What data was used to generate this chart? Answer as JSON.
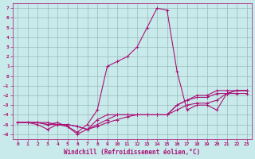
{
  "xlabel": "Windchill (Refroidissement éolien,°C)",
  "ylabel": "",
  "bg_color": "#c8eaea",
  "grid_color": "#9ababa",
  "line_color": "#aa1177",
  "xlim": [
    -0.5,
    23.5
  ],
  "ylim": [
    -6.5,
    7.5
  ],
  "xticks": [
    0,
    1,
    2,
    3,
    4,
    5,
    6,
    7,
    8,
    9,
    10,
    11,
    12,
    13,
    14,
    15,
    16,
    17,
    18,
    19,
    20,
    21,
    22,
    23
  ],
  "yticks": [
    7,
    6,
    5,
    4,
    3,
    2,
    1,
    0,
    -1,
    -2,
    -3,
    -4,
    -5,
    -6
  ],
  "lines": [
    {
      "x": [
        0,
        1,
        2,
        3,
        4,
        5,
        6,
        7,
        8,
        9,
        10,
        11,
        12,
        13,
        14,
        15,
        16,
        17,
        18,
        19,
        20,
        21,
        22,
        23
      ],
      "y": [
        -4.8,
        -4.8,
        -4.8,
        -5.0,
        -5.0,
        -5.0,
        -5.2,
        -5.5,
        -4.5,
        -4.0,
        -4.0,
        -4.0,
        -4.0,
        -4.0,
        -4.0,
        -4.0,
        -3.5,
        -3.0,
        -2.8,
        -2.8,
        -2.5,
        -1.8,
        -1.8,
        -1.8
      ]
    },
    {
      "x": [
        0,
        1,
        2,
        3,
        4,
        5,
        6,
        7,
        8,
        9,
        10,
        11,
        12,
        13,
        14,
        15,
        16,
        17,
        18,
        19,
        20,
        21,
        22,
        23
      ],
      "y": [
        -4.8,
        -4.8,
        -4.8,
        -4.8,
        -5.0,
        -5.0,
        -5.2,
        -5.5,
        -5.0,
        -4.5,
        -4.0,
        -4.0,
        -4.0,
        -4.0,
        -4.0,
        -4.0,
        -3.0,
        -2.5,
        -2.2,
        -2.2,
        -1.8,
        -1.8,
        -1.5,
        -1.5
      ]
    },
    {
      "x": [
        0,
        1,
        2,
        3,
        4,
        5,
        6,
        7,
        8,
        9,
        10,
        11,
        12,
        13,
        14,
        15,
        16,
        17,
        18,
        19,
        20,
        21,
        22,
        23
      ],
      "y": [
        -4.8,
        -4.8,
        -5.0,
        -5.5,
        -5.0,
        -5.2,
        -6.0,
        -5.5,
        -5.2,
        -4.8,
        -4.5,
        -4.2,
        -4.0,
        -4.0,
        -4.0,
        -4.0,
        -3.0,
        -2.5,
        -2.0,
        -2.0,
        -1.5,
        -1.5,
        -1.5,
        -1.5
      ]
    },
    {
      "x": [
        0,
        1,
        2,
        3,
        4,
        5,
        6,
        7,
        8,
        9,
        10,
        11,
        12,
        13,
        14,
        15,
        16,
        17,
        18,
        19,
        20,
        21,
        22,
        23
      ],
      "y": [
        -4.8,
        -4.8,
        -4.8,
        -5.0,
        -4.8,
        -5.2,
        -5.8,
        -5.0,
        -3.5,
        1.0,
        1.5,
        2.0,
        3.0,
        5.0,
        7.0,
        6.8,
        0.5,
        -3.5,
        -3.0,
        -3.0,
        -3.5,
        -1.8,
        -1.5,
        -1.5
      ]
    }
  ]
}
